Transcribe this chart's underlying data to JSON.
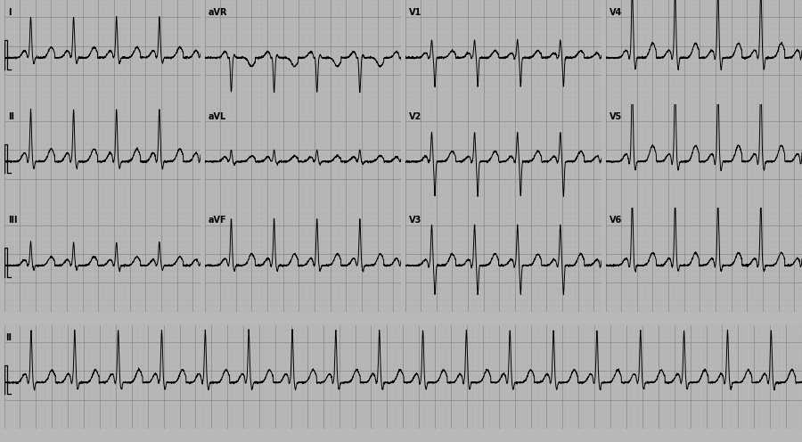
{
  "background_color": "#c8c8c8",
  "grid_major_color": "#b0b0b0",
  "grid_minor_color": "#c0c0c0",
  "ecg_color": "#000000",
  "fig_width": 9.0,
  "fig_height": 4.96,
  "rows": 4,
  "row_labels": [
    [
      "I",
      "aVR",
      "V1",
      "V4"
    ],
    [
      "II",
      "aVL",
      "V2",
      "V5"
    ],
    [
      "III",
      "aVF",
      "V3",
      "V6"
    ],
    [
      "II"
    ]
  ],
  "heart_rate": 110,
  "pr_interval": 0.24,
  "qrs_duration": 0.08,
  "qt_interval": 0.32
}
